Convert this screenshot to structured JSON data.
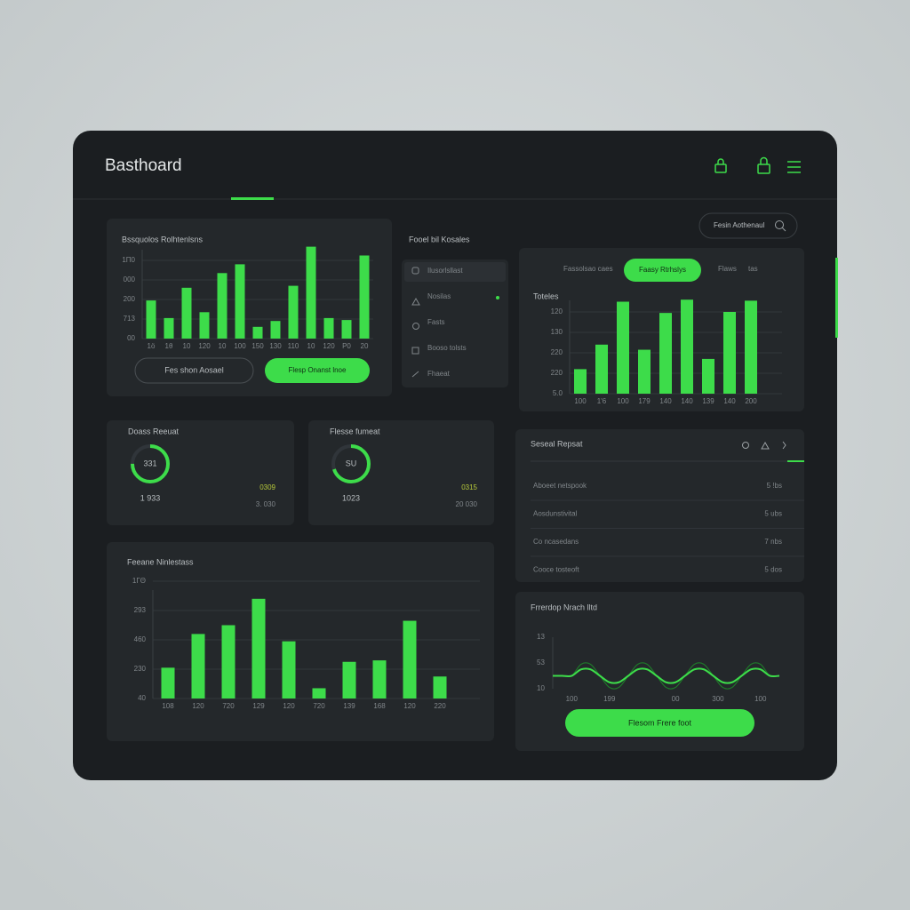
{
  "header": {
    "title": "Basthoard"
  },
  "search": {
    "placeholder": "Fesin Aothenaul"
  },
  "sales": {
    "title": "Bssquolos Rolhtenlsns",
    "chart": {
      "type": "bar",
      "color": "#3ddc4a",
      "grid": true,
      "categories": [
        "1ö",
        "1θ",
        "10",
        "120",
        "10",
        "100",
        "150",
        "130",
        "110",
        "10",
        "120",
        "P0",
        "20"
      ],
      "values": [
        1.95,
        1.05,
        2.6,
        1.35,
        3.35,
        3.8,
        0.6,
        0.9,
        2.7,
        4.7,
        1.05,
        0.95,
        4.25
      ],
      "ylim": [
        0,
        5
      ],
      "yticks": [
        {
          "value": 0,
          "label": "00"
        },
        {
          "value": 1,
          "label": "713"
        },
        {
          "value": 2,
          "label": "200"
        },
        {
          "value": 3,
          "label": "000"
        },
        {
          "value": 4,
          "label": "1Π0"
        }
      ]
    },
    "buttons": [
      "Fes shon Aosael",
      "Flesp Onanst lnoe"
    ]
  },
  "list": {
    "title": "Fooel bil Kosales",
    "items": [
      "Ilusorlsllast",
      "Nosilas",
      "Fasts",
      "Booso tolsts",
      "Fhaeat"
    ]
  },
  "totals": {
    "tabs": [
      "Fassolsao caes",
      "Faasy Rtrhslys",
      "Flaws",
      "tas"
    ],
    "label": "Toteles",
    "chart": {
      "type": "bar",
      "color": "#3ddc4a",
      "grid": true,
      "categories": [
        "100",
        "1'6",
        "100",
        "179",
        "140",
        "140",
        "139",
        "140",
        "200"
      ],
      "values": [
        1.2,
        2.4,
        4.5,
        2.15,
        3.95,
        4.6,
        1.7,
        4.0,
        4.55
      ],
      "ylim": [
        0,
        5
      ],
      "yticks": [
        {
          "value": 0,
          "label": "5.0"
        },
        {
          "value": 1,
          "label": "220"
        },
        {
          "value": 2,
          "label": "220"
        },
        {
          "value": 3,
          "label": "130"
        },
        {
          "value": 4,
          "label": "120"
        }
      ]
    }
  },
  "stats": [
    {
      "title": "Doass Reeuat",
      "ring": 75,
      "ring_label": "331",
      "count": "1 933",
      "change": "0309",
      "total": "3. 030"
    },
    {
      "title": "Flesse fumeat",
      "ring": 70,
      "ring_label": "SU",
      "count": "1023",
      "change": "0315",
      "total": "20 030"
    }
  ],
  "report": {
    "title": "Seseal Repsat",
    "rows": [
      [
        "Aboeet netspook",
        "5 !bs"
      ],
      [
        "Aosdunstivital",
        "5 ubs"
      ],
      [
        "Co ncasedans",
        "7 nbs"
      ],
      [
        "Cooce tosteoft",
        "5 dos"
      ]
    ]
  },
  "bottom": {
    "title": "Feeane Ninlestass",
    "chart": {
      "type": "bar",
      "color": "#3ddc4a",
      "grid": true,
      "categories": [
        "108",
        "120",
        "720",
        "129",
        "120",
        "720",
        "139",
        "168",
        "120",
        "220"
      ],
      "values": [
        1.05,
        2.2,
        2.5,
        3.4,
        1.95,
        0.35,
        1.25,
        1.3,
        2.65,
        0.75
      ],
      "ylim": [
        0,
        4
      ],
      "yticks": [
        {
          "value": 0,
          "label": "40"
        },
        {
          "value": 1,
          "label": "230"
        },
        {
          "value": 2,
          "label": "460"
        },
        {
          "value": 3,
          "label": "293"
        },
        {
          "value": 4,
          "label": "1ΓΘ"
        }
      ]
    }
  },
  "wave": {
    "title": "Frrerdop Nrach lltd",
    "chart": {
      "type": "line",
      "grid": false,
      "x": [
        0,
        1,
        2,
        3,
        4,
        5,
        6,
        7,
        8,
        9,
        10,
        11,
        12,
        13,
        14,
        15,
        16,
        17,
        18,
        19,
        20,
        21,
        22,
        23,
        24
      ],
      "xlim": [
        0,
        24
      ],
      "xticks": [
        {
          "value": 2,
          "label": "100"
        },
        {
          "value": 6,
          "label": "199"
        },
        {
          "value": 13,
          "label": "00"
        },
        {
          "value": 17.5,
          "label": "300"
        },
        {
          "value": 22,
          "label": "100"
        }
      ],
      "ylim": [
        0,
        2
      ],
      "yticks": [
        {
          "value": 0,
          "label": "10"
        },
        {
          "value": 1,
          "label": "53"
        },
        {
          "value": 2,
          "label": "13"
        }
      ],
      "series": [
        {
          "color": "#1f7a2a",
          "values": [
            0.5,
            0.5,
            0.5,
            0.95,
            0.95,
            0.5,
            0.05,
            0.05,
            0.5,
            0.95,
            0.95,
            0.5,
            0.05,
            0.05,
            0.5,
            0.95,
            0.95,
            0.5,
            0.05,
            0.05,
            0.5,
            0.95,
            0.95,
            0.5,
            0.5
          ]
        },
        {
          "color": "#3ddc4a",
          "values": [
            0.5,
            0.5,
            0.5,
            0.75,
            0.75,
            0.5,
            0.25,
            0.25,
            0.5,
            0.75,
            0.75,
            0.5,
            0.25,
            0.25,
            0.5,
            0.75,
            0.75,
            0.5,
            0.25,
            0.25,
            0.5,
            0.75,
            0.75,
            0.5,
            0.5
          ]
        }
      ]
    },
    "button": "Flesom Frere foot"
  }
}
